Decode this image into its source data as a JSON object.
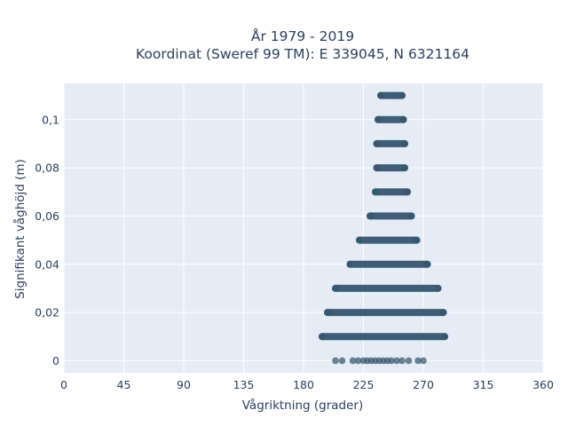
{
  "chart_data": {
    "type": "scatter",
    "title": "År 1979 - 2019",
    "subtitle": "Koordinat (Sweref 99 TM): E 339045, N 6321164",
    "xlabel": "Vågriktning (grader)",
    "ylabel": "Signifikant våghöjd (m)",
    "xlim": [
      0,
      360
    ],
    "ylim": [
      -0.005,
      0.115
    ],
    "x_ticks": [
      0,
      45,
      90,
      135,
      180,
      225,
      270,
      315,
      360
    ],
    "x_tick_labels": [
      "0",
      "45",
      "90",
      "135",
      "180",
      "225",
      "270",
      "315",
      "360"
    ],
    "y_ticks": [
      0,
      0.02,
      0.04,
      0.06,
      0.08,
      0.1
    ],
    "y_tick_labels": [
      "0",
      "0,02",
      "0,04",
      "0,06",
      "0,08",
      "0,1"
    ],
    "grid": true,
    "marker_color": "#34566f",
    "background_color": "#e5ecf6",
    "bands": [
      {
        "y": 0.0,
        "x_min": 209,
        "x_max": 272,
        "sparse": true
      },
      {
        "y": 0.01,
        "x_min": 194,
        "x_max": 286
      },
      {
        "y": 0.02,
        "x_min": 198,
        "x_max": 285
      },
      {
        "y": 0.03,
        "x_min": 204,
        "x_max": 281
      },
      {
        "y": 0.04,
        "x_min": 215,
        "x_max": 273
      },
      {
        "y": 0.05,
        "x_min": 222,
        "x_max": 265
      },
      {
        "y": 0.06,
        "x_min": 230,
        "x_max": 261
      },
      {
        "y": 0.07,
        "x_min": 234,
        "x_max": 258
      },
      {
        "y": 0.08,
        "x_min": 235,
        "x_max": 256
      },
      {
        "y": 0.09,
        "x_min": 235,
        "x_max": 256
      },
      {
        "y": 0.1,
        "x_min": 236,
        "x_max": 255
      },
      {
        "y": 0.11,
        "x_min": 238,
        "x_max": 254
      }
    ],
    "sparse_points": [
      {
        "x": 204,
        "y": 0
      },
      {
        "x": 209,
        "y": 0
      },
      {
        "x": 217,
        "y": 0
      },
      {
        "x": 221,
        "y": 0
      },
      {
        "x": 225,
        "y": 0
      },
      {
        "x": 228,
        "y": 0
      },
      {
        "x": 231,
        "y": 0
      },
      {
        "x": 234,
        "y": 0
      },
      {
        "x": 237,
        "y": 0
      },
      {
        "x": 240,
        "y": 0
      },
      {
        "x": 243,
        "y": 0
      },
      {
        "x": 246,
        "y": 0
      },
      {
        "x": 250,
        "y": 0
      },
      {
        "x": 254,
        "y": 0
      },
      {
        "x": 259,
        "y": 0
      },
      {
        "x": 266,
        "y": 0
      },
      {
        "x": 270,
        "y": 0
      }
    ]
  }
}
